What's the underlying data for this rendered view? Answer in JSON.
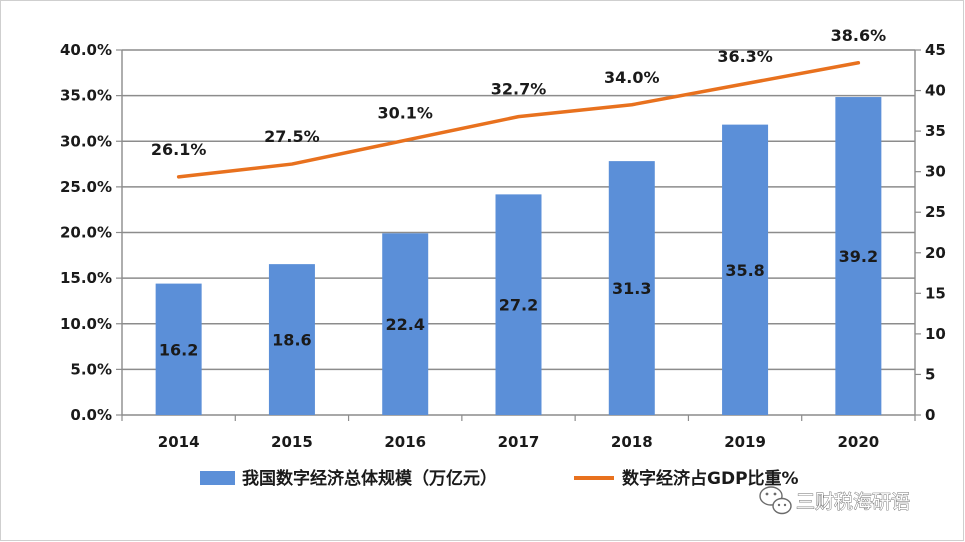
{
  "chart_data": {
    "type": "bar",
    "categories": [
      "2014",
      "2015",
      "2016",
      "2017",
      "2018",
      "2019",
      "2020"
    ],
    "series": [
      {
        "name": "我国数字经济总体规模（万亿元）",
        "type": "bar",
        "axis": "right",
        "color": "#5b8fd8",
        "values": [
          16.2,
          18.6,
          22.4,
          27.2,
          31.3,
          35.8,
          39.2
        ],
        "labels": [
          "16.2",
          "18.6",
          "22.4",
          "27.2",
          "31.3",
          "35.8",
          "39.2"
        ]
      },
      {
        "name": "数字经济占GDP比重%",
        "type": "line",
        "axis": "left",
        "color": "#e8711e",
        "values": [
          26.1,
          27.5,
          30.1,
          32.7,
          34.0,
          36.3,
          38.6
        ],
        "labels": [
          "26.1%",
          "27.5%",
          "30.1%",
          "32.7%",
          "34.0%",
          "36.3%",
          "38.6%"
        ]
      }
    ],
    "y_left": {
      "ylim": [
        0,
        40
      ],
      "ticks": [
        "0.0%",
        "5.0%",
        "10.0%",
        "15.0%",
        "20.0%",
        "25.0%",
        "30.0%",
        "35.0%",
        "40.0%"
      ]
    },
    "y_right": {
      "ylim": [
        0,
        45
      ],
      "ticks": [
        "0",
        "5",
        "10",
        "15",
        "20",
        "25",
        "30",
        "35",
        "40",
        "45"
      ]
    },
    "grid": true,
    "legend_position": "bottom"
  },
  "watermark": {
    "text": "三财税海研语",
    "icon": "wechat-icon"
  }
}
